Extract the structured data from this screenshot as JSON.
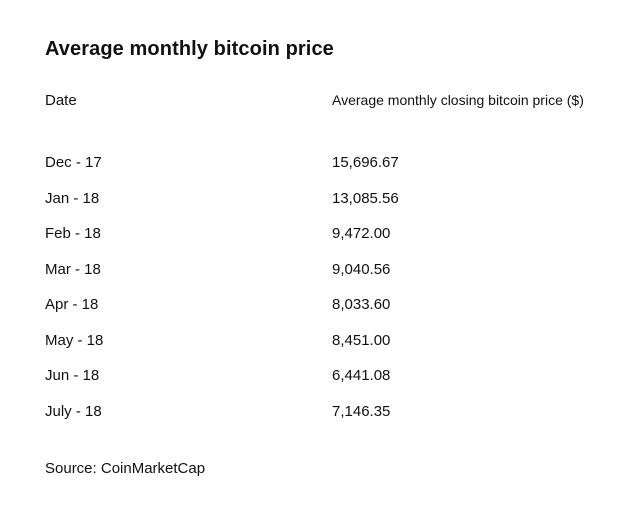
{
  "chart_data": {
    "type": "table",
    "title": "Average monthly bitcoin price",
    "columns": [
      "Date",
      "Average monthly closing bitcoin price ($)"
    ],
    "categories": [
      "Dec - 17",
      "Jan - 18",
      "Feb - 18",
      "Mar - 18",
      "Apr - 18",
      "May - 18",
      "Jun - 18",
      "July - 18"
    ],
    "values": [
      "15,696.67",
      "13,085.56",
      "9,472.00",
      "9,040.56",
      "8,033.60",
      "8,451.00",
      "6,441.08",
      "7,146.35"
    ],
    "source": "Source: CoinMarketCap"
  }
}
